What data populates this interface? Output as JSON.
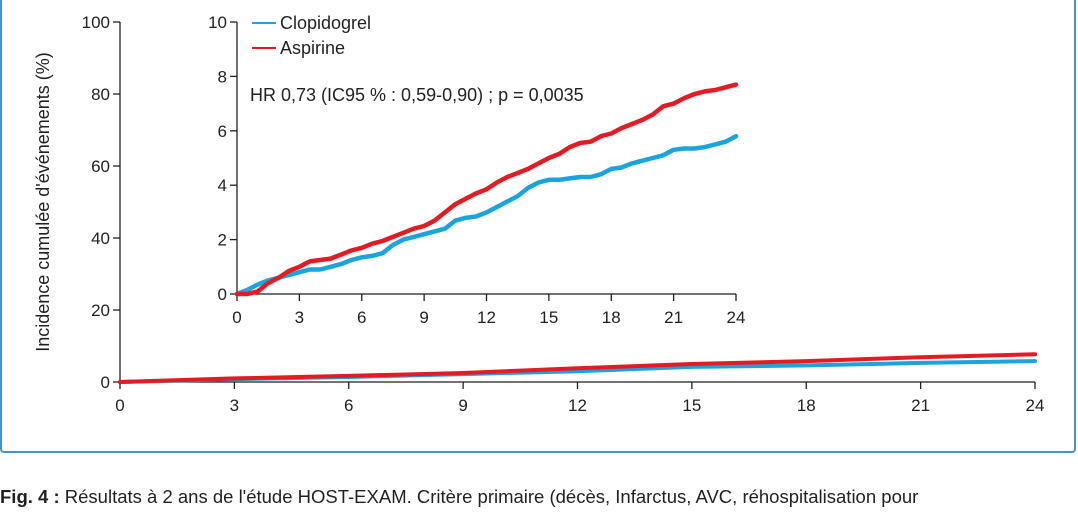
{
  "colors": {
    "clopidogrel": "#1aa3dc",
    "aspirine": "#e31b23",
    "axis": "#231f20",
    "frame": "#4a90c8"
  },
  "chart_data": [
    {
      "type": "line",
      "ylabel": "Incidence cumulée d'événements (%)",
      "xlim": [
        0,
        24
      ],
      "ylim": [
        0,
        100
      ],
      "x_ticks": [
        "0",
        "3",
        "6",
        "9",
        "12",
        "15",
        "18",
        "21",
        "24"
      ],
      "y_ticks": [
        "0",
        "20",
        "40",
        "60",
        "80",
        "100"
      ],
      "series": [
        {
          "name": "Clopidogrel",
          "x": [
            0,
            3,
            6,
            9,
            12,
            15,
            18,
            21,
            24
          ],
          "values": [
            0,
            0.8,
            1.4,
            2.2,
            3.0,
            4.2,
            4.6,
            5.3,
            5.8
          ]
        },
        {
          "name": "Aspirine",
          "x": [
            0,
            3,
            6,
            9,
            12,
            15,
            18,
            21,
            24
          ],
          "values": [
            0,
            1.0,
            1.7,
            2.5,
            3.8,
            5.0,
            5.8,
            6.9,
            7.7
          ]
        }
      ]
    },
    {
      "type": "line",
      "xlim": [
        0,
        24
      ],
      "ylim": [
        0,
        10
      ],
      "x_ticks": [
        "0",
        "3",
        "6",
        "9",
        "12",
        "15",
        "18",
        "21",
        "24"
      ],
      "y_ticks": [
        "0",
        "2",
        "4",
        "6",
        "8",
        "10"
      ],
      "annotation": "HR 0,73 (IC95 % : 0,59-0,90) ; p = 0,0035",
      "legend": [
        "Clopidogrel",
        "Aspirine"
      ],
      "legend_position": "top-left",
      "series": [
        {
          "name": "Clopidogrel",
          "x": [
            0,
            0.5,
            1,
            1.5,
            2,
            2.5,
            3,
            3.5,
            4,
            4.5,
            5,
            5.5,
            6,
            6.5,
            7,
            7.5,
            8,
            8.5,
            9,
            9.5,
            10,
            10.5,
            11,
            11.5,
            12,
            12.5,
            13,
            13.5,
            14,
            14.5,
            15,
            15.5,
            16,
            16.5,
            17,
            17.5,
            18,
            18.5,
            19,
            19.5,
            20,
            20.5,
            21,
            21.5,
            22,
            22.5,
            23,
            23.5,
            24
          ],
          "values": [
            0,
            0.15,
            0.35,
            0.5,
            0.6,
            0.7,
            0.8,
            0.9,
            0.9,
            1.0,
            1.1,
            1.25,
            1.35,
            1.4,
            1.5,
            1.8,
            2.0,
            2.1,
            2.2,
            2.3,
            2.4,
            2.7,
            2.8,
            2.85,
            3.0,
            3.2,
            3.4,
            3.6,
            3.9,
            4.1,
            4.2,
            4.2,
            4.25,
            4.3,
            4.3,
            4.4,
            4.6,
            4.65,
            4.8,
            4.9,
            5.0,
            5.1,
            5.3,
            5.35,
            5.35,
            5.4,
            5.5,
            5.6,
            5.8
          ]
        },
        {
          "name": "Aspirine",
          "x": [
            0,
            0.5,
            1,
            1.5,
            2,
            2.5,
            3,
            3.5,
            4,
            4.5,
            5,
            5.5,
            6,
            6.5,
            7,
            7.5,
            8,
            8.5,
            9,
            9.5,
            10,
            10.5,
            11,
            11.5,
            12,
            12.5,
            13,
            13.5,
            14,
            14.5,
            15,
            15.5,
            16,
            16.5,
            17,
            17.5,
            18,
            18.5,
            19,
            19.5,
            20,
            20.5,
            21,
            21.5,
            22,
            22.5,
            23,
            23.5,
            24
          ],
          "values": [
            0,
            0,
            0.1,
            0.4,
            0.6,
            0.85,
            1.0,
            1.2,
            1.25,
            1.3,
            1.45,
            1.6,
            1.7,
            1.85,
            1.95,
            2.1,
            2.25,
            2.4,
            2.5,
            2.7,
            3.0,
            3.3,
            3.5,
            3.7,
            3.85,
            4.1,
            4.3,
            4.45,
            4.6,
            4.8,
            5.0,
            5.15,
            5.4,
            5.55,
            5.6,
            5.8,
            5.9,
            6.1,
            6.25,
            6.4,
            6.6,
            6.9,
            7.0,
            7.2,
            7.35,
            7.45,
            7.5,
            7.6,
            7.7
          ]
        }
      ]
    }
  ],
  "caption": {
    "label": "Fig. 4 :",
    "text": " Résultats à 2 ans de l'étude HOST-EXAM. Critère primaire (décès, Infarctus, AVC, réhospitalisation pour"
  }
}
